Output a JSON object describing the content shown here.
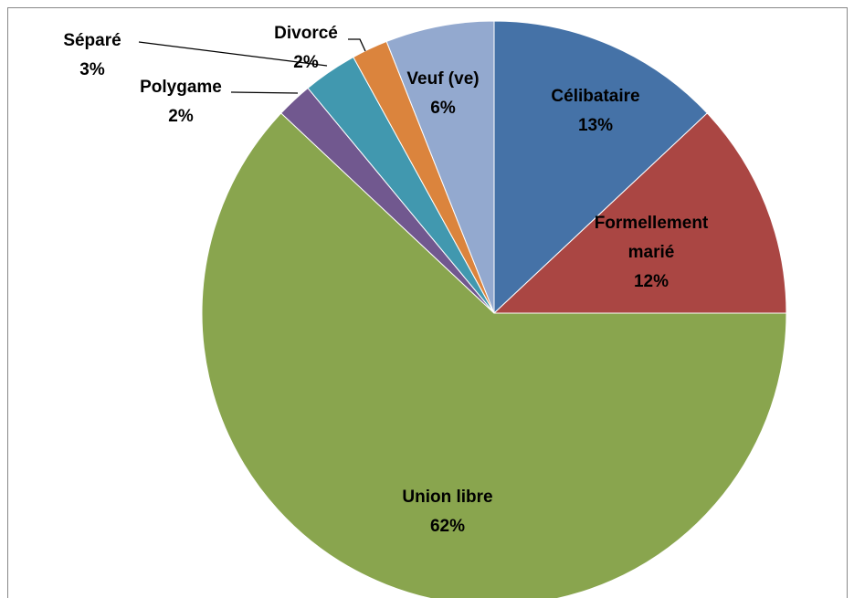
{
  "chart_data": {
    "type": "pie",
    "categories": [
      "Célibataire",
      "Formellement marié",
      "Union libre",
      "Polygame",
      "Séparé",
      "Divorcé",
      "Veuf (ve)"
    ],
    "values": [
      13,
      12,
      62,
      2,
      3,
      2,
      6
    ],
    "value_labels": [
      "13%",
      "12%",
      "62%",
      "2%",
      "3%",
      "2%",
      "6%"
    ],
    "colors": [
      "#4572a7",
      "#aa4643",
      "#89a54e",
      "#71588f",
      "#4198af",
      "#db843d",
      "#93a9cf"
    ]
  }
}
